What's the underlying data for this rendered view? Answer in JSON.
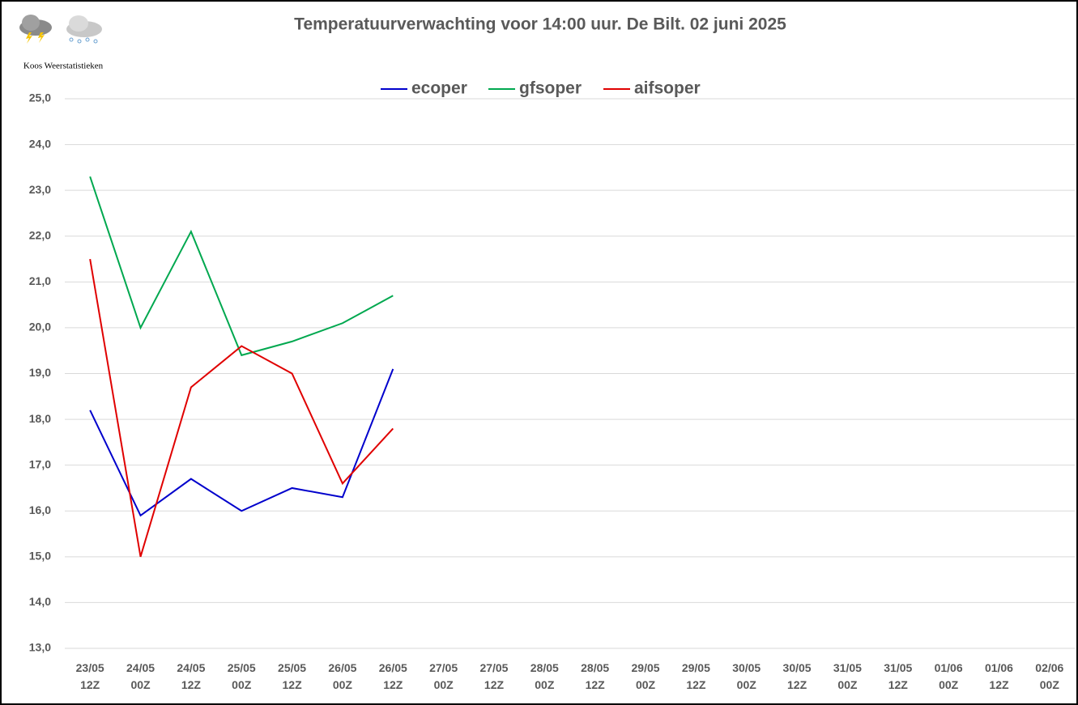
{
  "watermark": "Koos Weerstatistieken",
  "chart_data": {
    "type": "line",
    "title": "Temperatuurverwachting voor 14:00 uur. De Bilt. 02 juni 2025",
    "categories": [
      [
        "23/05",
        "12Z"
      ],
      [
        "24/05",
        "00Z"
      ],
      [
        "24/05",
        "12Z"
      ],
      [
        "25/05",
        "00Z"
      ],
      [
        "25/05",
        "12Z"
      ],
      [
        "26/05",
        "00Z"
      ],
      [
        "26/05",
        "12Z"
      ],
      [
        "27/05",
        "00Z"
      ],
      [
        "27/05",
        "12Z"
      ],
      [
        "28/05",
        "00Z"
      ],
      [
        "28/05",
        "12Z"
      ],
      [
        "29/05",
        "00Z"
      ],
      [
        "29/05",
        "12Z"
      ],
      [
        "30/05",
        "00Z"
      ],
      [
        "30/05",
        "12Z"
      ],
      [
        "31/05",
        "00Z"
      ],
      [
        "31/05",
        "12Z"
      ],
      [
        "01/06",
        "00Z"
      ],
      [
        "01/06",
        "12Z"
      ],
      [
        "02/06",
        "00Z"
      ]
    ],
    "series": [
      {
        "name": "ecoper",
        "color": "#0000cc",
        "values": [
          18.2,
          15.9,
          16.7,
          16.0,
          16.5,
          16.3,
          19.1,
          null,
          null,
          null,
          null,
          null,
          null,
          null,
          null,
          null,
          null,
          null,
          null,
          null
        ]
      },
      {
        "name": "gfsoper",
        "color": "#00a84f",
        "values": [
          23.3,
          20.0,
          22.1,
          19.4,
          19.7,
          20.1,
          20.7,
          null,
          null,
          null,
          null,
          null,
          null,
          null,
          null,
          null,
          null,
          null,
          null,
          null
        ]
      },
      {
        "name": "aifsoper",
        "color": "#e00000",
        "values": [
          21.5,
          15.0,
          18.7,
          19.6,
          19.0,
          16.6,
          17.8,
          null,
          null,
          null,
          null,
          null,
          null,
          null,
          null,
          null,
          null,
          null,
          null,
          null
        ]
      }
    ],
    "ylim": [
      13,
      25
    ],
    "yticks": [
      {
        "value": 13,
        "label": "13,0"
      },
      {
        "value": 14,
        "label": "14,0"
      },
      {
        "value": 15,
        "label": "15,0"
      },
      {
        "value": 16,
        "label": "16,0"
      },
      {
        "value": 17,
        "label": "17,0"
      },
      {
        "value": 18,
        "label": "18,0"
      },
      {
        "value": 19,
        "label": "19,0"
      },
      {
        "value": 20,
        "label": "20,0"
      },
      {
        "value": 21,
        "label": "21,0"
      },
      {
        "value": 22,
        "label": "22,0"
      },
      {
        "value": 23,
        "label": "23,0"
      },
      {
        "value": 24,
        "label": "24,0"
      },
      {
        "value": 25,
        "label": "25,0"
      }
    ],
    "grid": true,
    "legend": "top"
  }
}
